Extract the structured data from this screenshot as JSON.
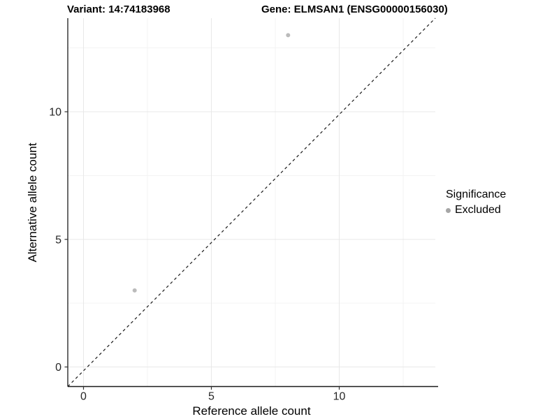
{
  "header": {
    "title_left": "Variant: 14:74183968",
    "title_right": "Gene: ELMSAN1 (ENSG00000156030)"
  },
  "chart_data": {
    "type": "scatter",
    "title": "Variant: 14:74183968 / Gene: ELMSAN1 (ENSG00000156030)",
    "xlabel": "Reference allele count",
    "ylabel": "Alternative allele count",
    "xlim": [
      -0.65,
      13.75
    ],
    "ylim": [
      -0.75,
      13.7
    ],
    "major_ticks": [
      0,
      5,
      10
    ],
    "minor_ticks": [
      2.5,
      7.5,
      12.5
    ],
    "grid": true,
    "legend_position": "right",
    "identity_line": {
      "present": true,
      "style": "dashed",
      "color": "#1a1a1a"
    },
    "series": [
      {
        "name": "Excluded",
        "color": "#b4b4b4",
        "points": [
          [
            2,
            3
          ],
          [
            8,
            13
          ]
        ]
      }
    ]
  },
  "legend": {
    "title": "Significance",
    "items": [
      {
        "label": "Excluded",
        "swatch_color": "#a6a6a6"
      }
    ]
  },
  "colors": {
    "background": "#ffffff",
    "grid_major": "#e8e8e8",
    "grid_minor": "#f3f3f3",
    "axis_line": "#1a1a1a",
    "tick_mark": "#333333",
    "tick_label": "#262626"
  }
}
